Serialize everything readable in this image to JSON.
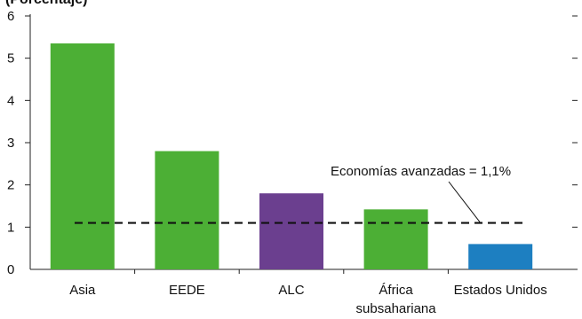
{
  "chart_data": {
    "type": "bar",
    "title": "(Porcentaje)",
    "categories": [
      [
        "Asia"
      ],
      [
        "EEDE"
      ],
      [
        "ALC"
      ],
      [
        "África",
        "subsahariana"
      ],
      [
        "Estados Unidos"
      ]
    ],
    "values": [
      5.35,
      2.8,
      1.8,
      1.42,
      0.6
    ],
    "bar_colors": [
      "#4caf35",
      "#4caf35",
      "#6b3f8f",
      "#4caf35",
      "#1d7fc1"
    ],
    "ylim": [
      0,
      6
    ],
    "yticks": [
      "0",
      "1",
      "2",
      "3",
      "4",
      "5",
      "6"
    ],
    "reference_line": {
      "value": 1.1,
      "label": "Economías avanzadas = 1,1%",
      "style": "dashed",
      "color": "#111111"
    },
    "grid": false,
    "legend": "none"
  }
}
